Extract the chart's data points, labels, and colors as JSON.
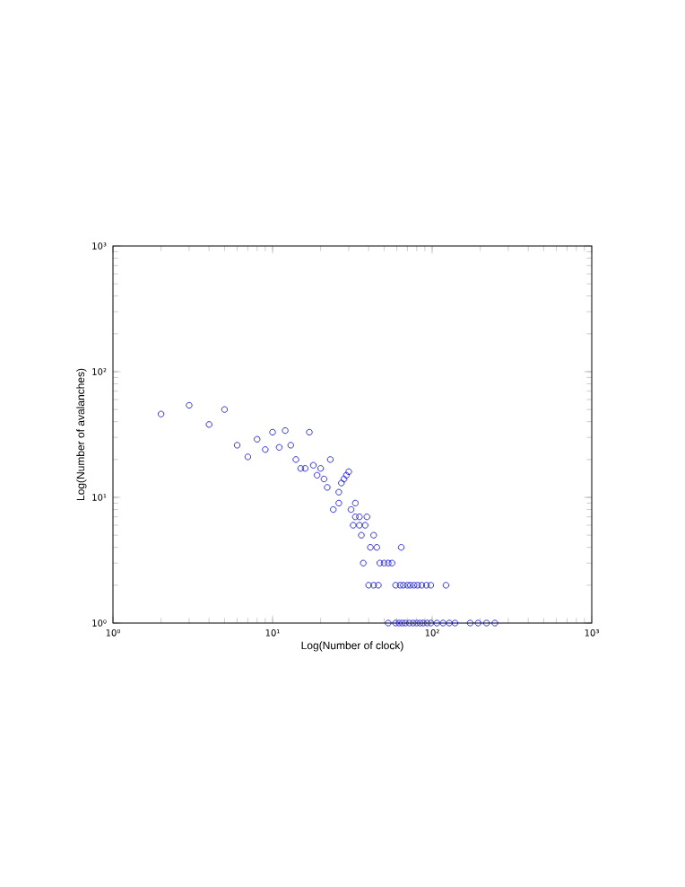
{
  "chart_data": {
    "type": "scatter",
    "xlabel": "Log(Number of clock)",
    "ylabel": "Log(Number of avalanches)",
    "log": "xy",
    "marker": "circle",
    "grid": false,
    "xlim": [
      1,
      1000
    ],
    "ylim": [
      1,
      1000
    ],
    "xticks": [
      {
        "value": 1,
        "label": "10⁰"
      },
      {
        "value": 10,
        "label": "10¹"
      },
      {
        "value": 100,
        "label": "10²"
      },
      {
        "value": 1000,
        "label": "10³"
      }
    ],
    "yticks": [
      {
        "value": 1,
        "label": "10⁰"
      },
      {
        "value": 10,
        "label": "10¹"
      },
      {
        "value": 100,
        "label": "10²"
      },
      {
        "value": 1000,
        "label": "10³"
      }
    ],
    "series": [
      {
        "color": "#0000ff",
        "x": [
          2,
          3,
          4,
          5,
          6,
          7,
          8,
          9,
          10,
          12,
          11,
          13,
          17,
          14,
          15,
          16,
          18,
          19,
          20,
          21,
          22,
          23,
          26,
          27,
          28,
          29,
          30,
          26,
          24,
          31,
          33,
          33,
          35,
          39,
          32,
          35,
          38,
          36,
          43,
          41,
          45,
          64,
          37,
          47,
          50,
          53,
          56,
          40,
          43,
          46,
          59,
          63,
          66,
          70,
          73,
          77,
          81,
          86,
          92,
          98,
          122,
          53,
          59,
          62,
          65,
          68,
          72,
          76,
          80,
          84,
          88,
          93,
          98,
          107,
          117,
          128,
          139,
          173,
          194,
          219,
          247
        ],
        "values": [
          46,
          54,
          38,
          50,
          26,
          21,
          29,
          24,
          33,
          34,
          25,
          26,
          33,
          20,
          17,
          17,
          18,
          15,
          17,
          14,
          12,
          20,
          11,
          13,
          14,
          15,
          16,
          9,
          8,
          8,
          9,
          7,
          7,
          7,
          6,
          6,
          6,
          5,
          5,
          4,
          4,
          4,
          3,
          3,
          3,
          3,
          3,
          2,
          2,
          2,
          2,
          2,
          2,
          2,
          2,
          2,
          2,
          2,
          2,
          2,
          2,
          1,
          1,
          1,
          1,
          1,
          1,
          1,
          1,
          1,
          1,
          1,
          1,
          1,
          1,
          1,
          1,
          1,
          1,
          1,
          1
        ]
      }
    ]
  }
}
